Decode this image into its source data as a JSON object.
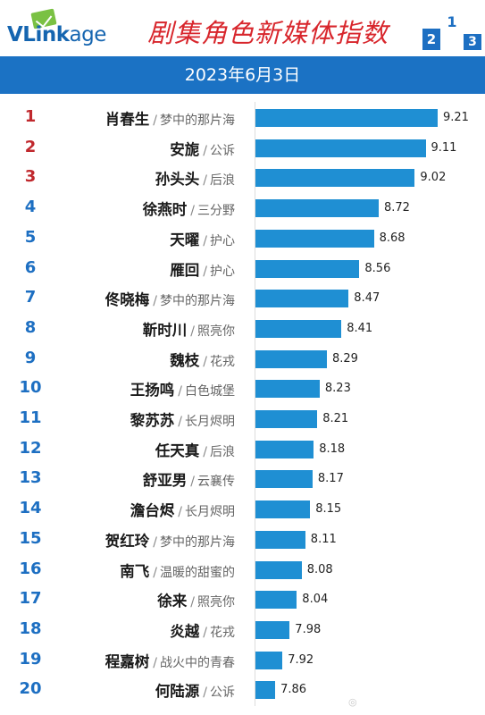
{
  "brand": {
    "logo_main": "VLink",
    "logo_tail": "age"
  },
  "title": "剧集角色新媒体指数",
  "date": "2023年6月3日",
  "podium": [
    "2",
    "1",
    "3"
  ],
  "colors": {
    "top_rank": "#c0282d",
    "rank": "#1d6fc2",
    "bar": "#1f8fd3",
    "header_band": "#1b72c4",
    "title": "#d8262c"
  },
  "chart_data": {
    "type": "bar",
    "orientation": "horizontal",
    "title": "剧集角色新媒体指数",
    "subtitle": "2023年6月3日",
    "grid": false,
    "rows": [
      {
        "rank": "1",
        "name": "肖春生",
        "drama": "梦中的那片海",
        "value": 9.21
      },
      {
        "rank": "2",
        "name": "安旎",
        "drama": "公诉",
        "value": 9.11
      },
      {
        "rank": "3",
        "name": "孙头头",
        "drama": "后浪",
        "value": 9.02
      },
      {
        "rank": "4",
        "name": "徐燕时",
        "drama": "三分野",
        "value": 8.72
      },
      {
        "rank": "5",
        "name": "天曜",
        "drama": "护心",
        "value": 8.68
      },
      {
        "rank": "6",
        "name": "雁回",
        "drama": "护心",
        "value": 8.56
      },
      {
        "rank": "7",
        "name": "佟晓梅",
        "drama": "梦中的那片海",
        "value": 8.47
      },
      {
        "rank": "8",
        "name": "靳时川",
        "drama": "照亮你",
        "value": 8.41
      },
      {
        "rank": "9",
        "name": "魏枝",
        "drama": "花戎",
        "value": 8.29
      },
      {
        "rank": "10",
        "name": "王扬鸣",
        "drama": "白色城堡",
        "value": 8.23
      },
      {
        "rank": "11",
        "name": "黎苏苏",
        "drama": "长月烬明",
        "value": 8.21
      },
      {
        "rank": "12",
        "name": "任天真",
        "drama": "后浪",
        "value": 8.18
      },
      {
        "rank": "13",
        "name": "舒亚男",
        "drama": "云襄传",
        "value": 8.17
      },
      {
        "rank": "14",
        "name": "澹台烬",
        "drama": "长月烬明",
        "value": 8.15
      },
      {
        "rank": "15",
        "name": "贺红玲",
        "drama": "梦中的那片海",
        "value": 8.11
      },
      {
        "rank": "16",
        "name": "南飞",
        "drama": "温暖的甜蜜的",
        "value": 8.08
      },
      {
        "rank": "17",
        "name": "徐来",
        "drama": "照亮你",
        "value": 8.04
      },
      {
        "rank": "18",
        "name": "炎越",
        "drama": "花戎",
        "value": 7.98
      },
      {
        "rank": "19",
        "name": "程嘉树",
        "drama": "战火中的青春",
        "value": 7.92
      },
      {
        "rank": "20",
        "name": "何陆源",
        "drama": "公诉",
        "value": 7.86
      }
    ]
  }
}
